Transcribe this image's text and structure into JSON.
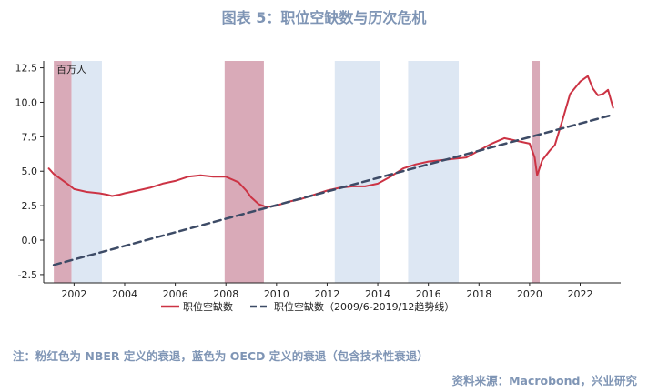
{
  "title": "图表 5：职位空缺数与历次危机",
  "note": "注：粉红色为 NBER 定义的衰退，蓝色为 OECD 定义的衰退（包含技术性衰退）",
  "source": "资料来源：Macrobond，兴业研究",
  "colors": {
    "series_line": "#cc3344",
    "trend_line": "#3d4b66",
    "nber_band": "#d9aab8",
    "oecd_band": "#dde7f3",
    "axis": "#222222",
    "header_text": "#7f95b5"
  },
  "chart_data": {
    "type": "line",
    "unit": "百万人",
    "xlim": [
      2000.8,
      2023.6
    ],
    "ylim": [
      -3.1,
      13.0
    ],
    "x_ticks": [
      2002,
      2004,
      2006,
      2008,
      2010,
      2012,
      2014,
      2016,
      2018,
      2020,
      2022
    ],
    "y_ticks": [
      -2.5,
      0.0,
      2.5,
      5.0,
      7.5,
      10.0,
      12.5
    ],
    "y_tick_labels": [
      "-2.5",
      "0.0",
      "2.5",
      "5.0",
      "7.5",
      "10.0",
      "12.5"
    ],
    "grid": false,
    "legend_position": "bottom",
    "shaded_periods": [
      {
        "type": "nber",
        "start": 2001.2,
        "end": 2001.9
      },
      {
        "type": "oecd",
        "start": 2001.9,
        "end": 2003.1
      },
      {
        "type": "nber",
        "start": 2007.95,
        "end": 2009.5
      },
      {
        "type": "oecd",
        "start": 2012.3,
        "end": 2014.1
      },
      {
        "type": "oecd",
        "start": 2015.2,
        "end": 2017.2
      },
      {
        "type": "nber",
        "start": 2020.1,
        "end": 2020.4
      }
    ],
    "series": [
      {
        "name": "职位空缺数",
        "style": "solid",
        "x": [
          2001.0,
          2001.2,
          2001.5,
          2001.8,
          2002.0,
          2002.5,
          2003.0,
          2003.3,
          2003.5,
          2003.8,
          2004.0,
          2004.5,
          2005.0,
          2005.5,
          2006.0,
          2006.5,
          2007.0,
          2007.5,
          2008.0,
          2008.5,
          2008.8,
          2009.0,
          2009.3,
          2009.6,
          2010.0,
          2010.5,
          2011.0,
          2011.5,
          2012.0,
          2012.5,
          2013.0,
          2013.5,
          2014.0,
          2014.5,
          2015.0,
          2015.5,
          2016.0,
          2016.5,
          2017.0,
          2017.5,
          2018.0,
          2018.5,
          2019.0,
          2019.5,
          2020.0,
          2020.2,
          2020.3,
          2020.5,
          2020.8,
          2021.0,
          2021.3,
          2021.6,
          2022.0,
          2022.3,
          2022.5,
          2022.7,
          2022.9,
          2023.1,
          2023.3
        ],
        "y": [
          5.2,
          4.8,
          4.4,
          4.0,
          3.7,
          3.5,
          3.4,
          3.3,
          3.2,
          3.3,
          3.4,
          3.6,
          3.8,
          4.1,
          4.3,
          4.6,
          4.7,
          4.6,
          4.6,
          4.2,
          3.6,
          3.1,
          2.6,
          2.4,
          2.5,
          2.8,
          3.0,
          3.3,
          3.6,
          3.8,
          3.9,
          3.9,
          4.1,
          4.6,
          5.2,
          5.5,
          5.7,
          5.8,
          5.9,
          6.0,
          6.5,
          7.0,
          7.4,
          7.2,
          7.0,
          6.0,
          4.7,
          5.8,
          6.5,
          6.9,
          8.7,
          10.6,
          11.5,
          11.9,
          11.0,
          10.5,
          10.6,
          10.9,
          9.6
        ]
      },
      {
        "name": "职位空缺数（2009/6-2019/12趋势线）",
        "style": "dashed",
        "x": [
          2001.2,
          2023.3
        ],
        "y": [
          -1.8,
          9.1
        ]
      }
    ]
  }
}
